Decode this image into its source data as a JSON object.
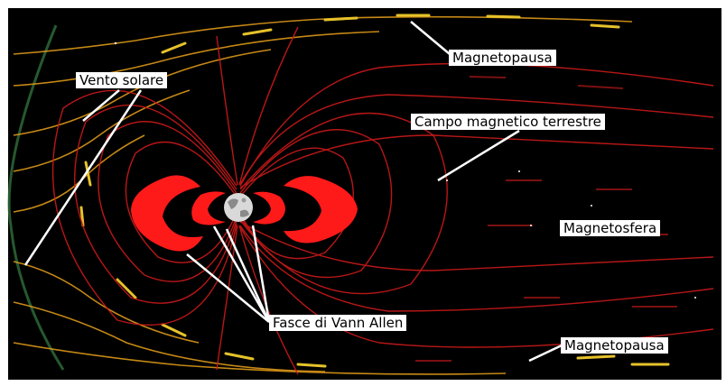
{
  "labels": {
    "vento_solare": "Vento solare",
    "magnetopausa_top": "Magnetopausa",
    "campo_magnetico": "Campo magnetico terrestre",
    "magnetosfera": "Magnetosfera",
    "fasce_van_allen": "Fasce di Vann Allen",
    "magnetopausa_bottom": "Magnetopausa"
  },
  "colors": {
    "background": "#000000",
    "frame": "#ffffff",
    "field_lines": "#cc1a1a",
    "belts": "#ff1a1a",
    "solar_wind": "#e8a01a",
    "bow_shock": "#2f6f3a",
    "pointer_lines": "#ffffff"
  },
  "icons": {
    "earth": "earth-icon"
  }
}
